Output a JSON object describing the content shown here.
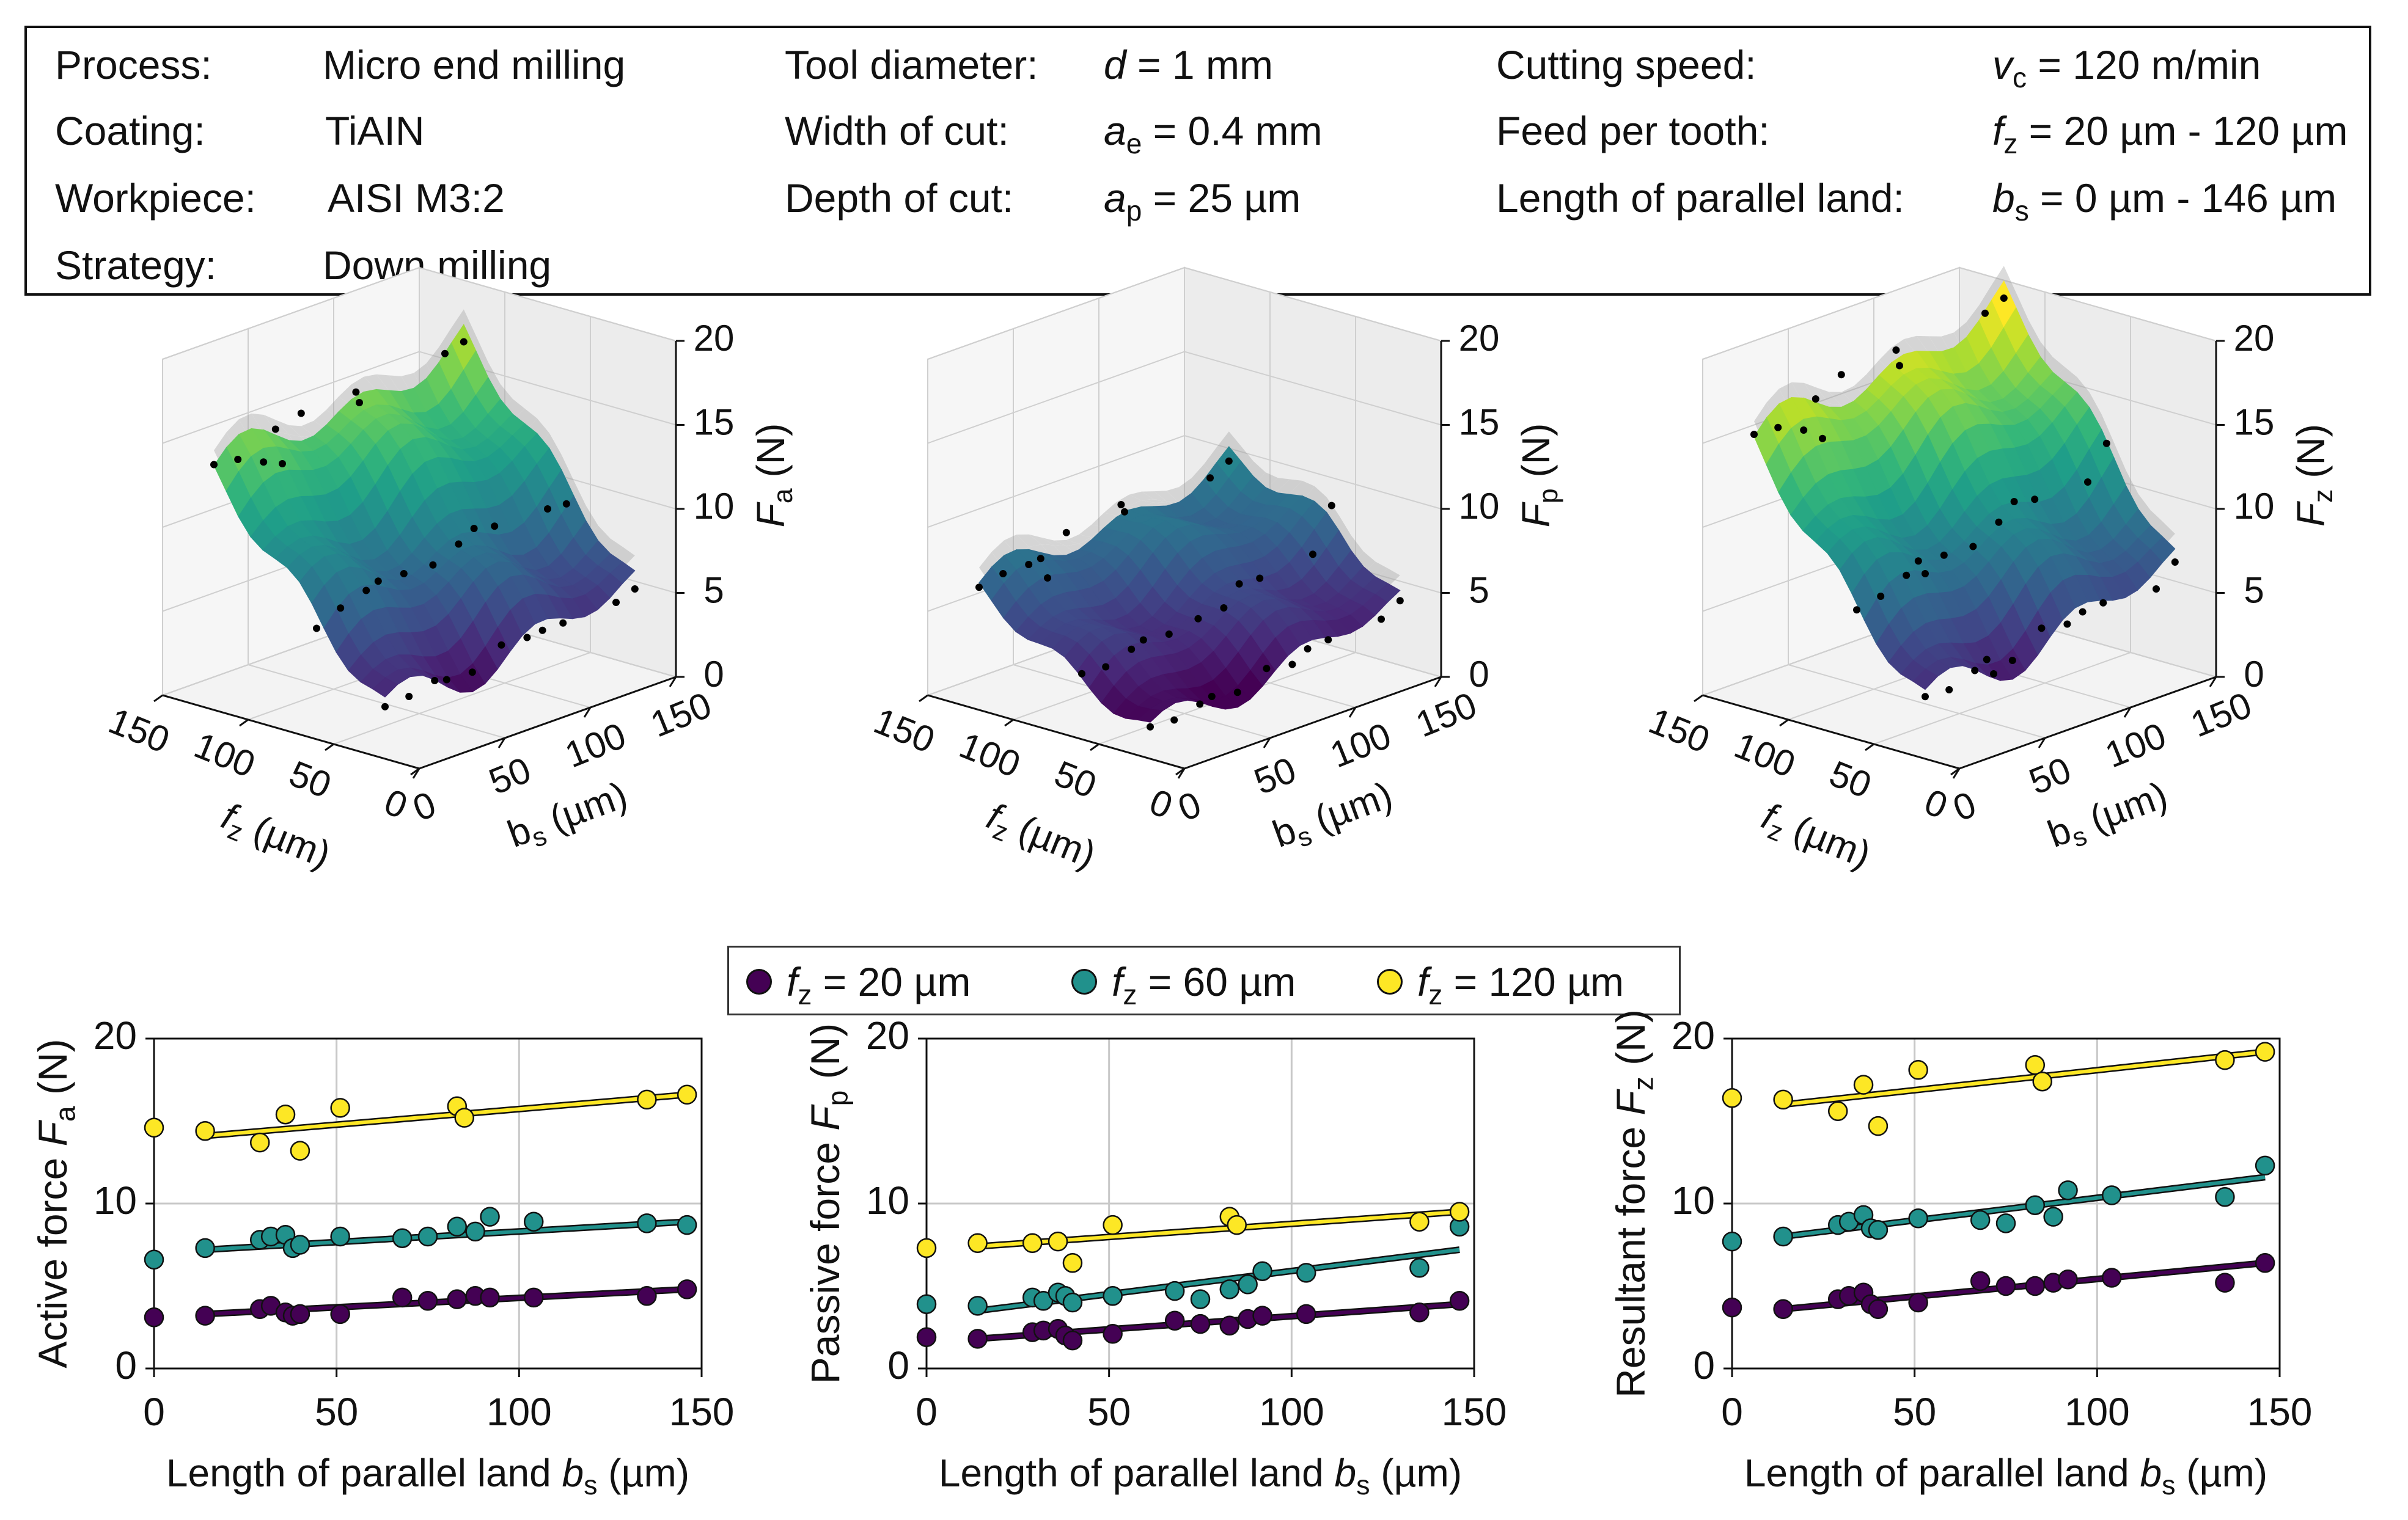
{
  "parameters": {
    "col1": [
      {
        "label": "Process:",
        "value": "Micro end milling"
      },
      {
        "label": "Coating:",
        "value": "TiAIN"
      },
      {
        "label": "Workpiece:",
        "value": "AISI M3:2"
      },
      {
        "label": "Strategy:",
        "value": "Down milling"
      }
    ],
    "col2": [
      {
        "label": "Tool diameter:",
        "sym": "d",
        "sub": "",
        "rest": " = 1 mm"
      },
      {
        "label": "Width of cut:",
        "sym": "a",
        "sub": "e",
        "rest": " = 0.4 mm"
      },
      {
        "label": "Depth of cut:",
        "sym": "a",
        "sub": "p",
        "rest": " = 25 µm"
      }
    ],
    "col3": [
      {
        "label": "Cutting speed:",
        "sym": "v",
        "sub": "c",
        "rest": " = 120 m/min"
      },
      {
        "label": "Feed per tooth:",
        "sym": "f",
        "sub": "z",
        "rest": " = 20 µm - 120 µm"
      },
      {
        "label": "Length of parallel land:",
        "sym": "b",
        "sub": "s",
        "rest": " = 0 µm - 146 µm"
      }
    ]
  },
  "legend": [
    {
      "sym": "f",
      "sub": "z",
      "text": " =   20 µm",
      "color": "#440154"
    },
    {
      "sym": "f",
      "sub": "z",
      "text": " =   60 µm",
      "color": "#21918c"
    },
    {
      "sym": "f",
      "sub": "z",
      "text": " = 120 µm",
      "color": "#fde725"
    }
  ],
  "chart_data": [
    {
      "type": "surface3d",
      "z_letter": "F",
      "z_sub": "a",
      "z_unit": " (N)",
      "z_ticks": [
        "0",
        "5",
        "10",
        "15",
        "20"
      ],
      "fz_label": "f",
      "fz_sub": "z",
      "fz_unit": " (µm)",
      "fz_ticks": [
        "0",
        "50",
        "100",
        "150"
      ],
      "bs_label": "b",
      "bs_sub": "s",
      "bs_unit": " (µm)",
      "bs_ticks": [
        "0",
        "50",
        "100",
        "150"
      ],
      "zlim": [
        0,
        20
      ],
      "fz_range": [
        20,
        120
      ],
      "bs_range": [
        0,
        146
      ],
      "amplitude": 1.0,
      "points": [
        [
          20,
          0,
          3.1
        ],
        [
          20,
          14,
          3.2
        ],
        [
          20,
          29,
          3.6
        ],
        [
          20,
          36,
          3.4
        ],
        [
          20,
          51,
          3.3
        ],
        [
          20,
          68,
          4.3
        ],
        [
          20,
          83,
          4.2
        ],
        [
          20,
          92,
          4.3
        ],
        [
          20,
          104,
          4.3
        ],
        [
          20,
          135,
          4.4
        ],
        [
          20,
          146,
          4.8
        ],
        [
          60,
          0,
          6.6
        ],
        [
          60,
          14,
          7.3
        ],
        [
          60,
          29,
          7.8
        ],
        [
          60,
          36,
          8.1
        ],
        [
          60,
          51,
          8.0
        ],
        [
          60,
          68,
          7.9
        ],
        [
          60,
          83,
          8.6
        ],
        [
          60,
          92,
          9.2
        ],
        [
          60,
          104,
          8.9
        ],
        [
          60,
          135,
          8.8
        ],
        [
          60,
          146,
          8.7
        ],
        [
          120,
          0,
          14.6
        ],
        [
          120,
          14,
          14.4
        ],
        [
          120,
          29,
          13.7
        ],
        [
          120,
          36,
          15.4
        ],
        [
          120,
          40,
          13.2
        ],
        [
          120,
          51,
          15.8
        ],
        [
          120,
          83,
          15.9
        ],
        [
          120,
          85,
          15.2
        ],
        [
          120,
          135,
          16.3
        ],
        [
          120,
          146,
          16.6
        ]
      ]
    },
    {
      "type": "surface3d",
      "z_letter": "F",
      "z_sub": "p",
      "z_unit": " (N)",
      "z_ticks": [
        "0",
        "5",
        "10",
        "15",
        "20"
      ],
      "fz_label": "f",
      "fz_sub": "z",
      "fz_unit": " (µm)",
      "fz_ticks": [
        "0",
        "50",
        "100",
        "150"
      ],
      "bs_label": "b",
      "bs_sub": "s",
      "bs_unit": " (µm)",
      "bs_ticks": [
        "0",
        "50",
        "100",
        "150"
      ],
      "zlim": [
        0,
        20
      ],
      "fz_range": [
        20,
        120
      ],
      "bs_range": [
        0,
        146
      ],
      "amplitude": 0.8,
      "points": [
        [
          20,
          0,
          1.9
        ],
        [
          20,
          14,
          1.8
        ],
        [
          20,
          29,
          2.2
        ],
        [
          20,
          36,
          2.4
        ],
        [
          20,
          51,
          2.1
        ],
        [
          20,
          68,
          2.9
        ],
        [
          20,
          83,
          2.6
        ],
        [
          20,
          92,
          3.2
        ],
        [
          20,
          104,
          3.3
        ],
        [
          20,
          135,
          3.4
        ],
        [
          20,
          146,
          4.1
        ],
        [
          60,
          0,
          3.9
        ],
        [
          60,
          14,
          3.8
        ],
        [
          60,
          29,
          4.3
        ],
        [
          60,
          36,
          4.6
        ],
        [
          60,
          51,
          4.4
        ],
        [
          60,
          68,
          4.7
        ],
        [
          60,
          83,
          4.8
        ],
        [
          60,
          92,
          5.9
        ],
        [
          60,
          104,
          5.8
        ],
        [
          60,
          135,
          6.1
        ],
        [
          60,
          146,
          8.6
        ],
        [
          120,
          0,
          7.3
        ],
        [
          120,
          14,
          7.6
        ],
        [
          120,
          29,
          7.6
        ],
        [
          120,
          36,
          7.7
        ],
        [
          120,
          40,
          6.4
        ],
        [
          120,
          51,
          8.7
        ],
        [
          120,
          83,
          9.2
        ],
        [
          120,
          85,
          8.7
        ],
        [
          120,
          135,
          8.9
        ],
        [
          120,
          146,
          9.5
        ]
      ]
    },
    {
      "type": "surface3d",
      "z_letter": "F",
      "z_sub": "z",
      "z_unit": " (N)",
      "z_ticks": [
        "0",
        "5",
        "10",
        "15",
        "20"
      ],
      "fz_label": "f",
      "fz_sub": "z",
      "fz_unit": " (µm)",
      "fz_ticks": [
        "0",
        "50",
        "100",
        "150"
      ],
      "bs_label": "b",
      "bs_sub": "s",
      "bs_unit": " (µm)",
      "bs_ticks": [
        "0",
        "50",
        "100",
        "150"
      ],
      "zlim": [
        0,
        20
      ],
      "fz_range": [
        20,
        120
      ],
      "bs_range": [
        0,
        146
      ],
      "amplitude": 1.0,
      "points": [
        [
          20,
          0,
          3.7
        ],
        [
          20,
          14,
          3.6
        ],
        [
          20,
          29,
          4.2
        ],
        [
          20,
          36,
          4.6
        ],
        [
          20,
          40,
          3.6
        ],
        [
          20,
          51,
          4.0
        ],
        [
          20,
          68,
          5.3
        ],
        [
          20,
          83,
          5.0
        ],
        [
          20,
          92,
          5.4
        ],
        [
          20,
          104,
          5.5
        ],
        [
          20,
          135,
          5.2
        ],
        [
          20,
          146,
          6.4
        ],
        [
          60,
          0,
          7.7
        ],
        [
          60,
          14,
          8.0
        ],
        [
          60,
          29,
          8.7
        ],
        [
          60,
          36,
          9.3
        ],
        [
          60,
          40,
          8.4
        ],
        [
          60,
          51,
          9.1
        ],
        [
          60,
          68,
          9.0
        ],
        [
          60,
          83,
          9.9
        ],
        [
          60,
          92,
          10.8
        ],
        [
          60,
          104,
          10.5
        ],
        [
          60,
          135,
          10.4
        ],
        [
          60,
          146,
          12.3
        ],
        [
          120,
          0,
          16.4
        ],
        [
          120,
          14,
          16.3
        ],
        [
          120,
          29,
          15.6
        ],
        [
          120,
          36,
          17.2
        ],
        [
          120,
          40,
          14.7
        ],
        [
          120,
          51,
          18.1
        ],
        [
          120,
          83,
          18.4
        ],
        [
          120,
          85,
          17.4
        ],
        [
          120,
          135,
          18.7
        ],
        [
          120,
          146,
          19.2
        ]
      ]
    },
    {
      "type": "scatter",
      "ylabel": "Active force ",
      "ylabel_sym": "F",
      "ylabel_sub": "a",
      "ylabel_unit": " (N)",
      "xlabel": "Length of parallel land ",
      "xlabel_sym": "b",
      "xlabel_sub": "s",
      "xlabel_unit": " (µm)",
      "xlim": [
        0,
        150
      ],
      "ylim": [
        0,
        20
      ],
      "x_ticks": [
        "0",
        "50",
        "100",
        "150"
      ],
      "y_ticks": [
        "0",
        "10",
        "20"
      ],
      "series": [
        {
          "name": "fz = 20 µm",
          "color": "#440154",
          "x": [
            0,
            14,
            29,
            32,
            36,
            38,
            40,
            51,
            68,
            75,
            83,
            88,
            92,
            104,
            135,
            146
          ],
          "y": [
            3.1,
            3.2,
            3.6,
            3.8,
            3.4,
            3.2,
            3.3,
            3.3,
            4.3,
            4.1,
            4.2,
            4.4,
            4.3,
            4.3,
            4.4,
            4.8
          ],
          "fit": [
            [
              14,
              3.3
            ],
            [
              146,
              4.8
            ]
          ]
        },
        {
          "name": "fz = 60 µm",
          "color": "#21918c",
          "x": [
            0,
            14,
            29,
            32,
            36,
            38,
            40,
            51,
            68,
            75,
            83,
            88,
            92,
            104,
            135,
            146
          ],
          "y": [
            6.6,
            7.3,
            7.8,
            8.0,
            8.1,
            7.3,
            7.5,
            8.0,
            7.9,
            8.0,
            8.6,
            8.3,
            9.2,
            8.9,
            8.8,
            8.7
          ],
          "fit": [
            [
              14,
              7.2
            ],
            [
              146,
              8.9
            ]
          ]
        },
        {
          "name": "fz = 120 µm",
          "color": "#fde725",
          "x": [
            0,
            14,
            29,
            36,
            40,
            51,
            83,
            85,
            135,
            146
          ],
          "y": [
            14.6,
            14.4,
            13.7,
            15.4,
            13.2,
            15.8,
            15.9,
            15.2,
            16.3,
            16.6
          ],
          "fit": [
            [
              14,
              14.1
            ],
            [
              146,
              16.6
            ]
          ]
        }
      ]
    },
    {
      "type": "scatter",
      "ylabel": "Passive force ",
      "ylabel_sym": "F",
      "ylabel_sub": "p",
      "ylabel_unit": " (N)",
      "xlabel": "Length of parallel land ",
      "xlabel_sym": "b",
      "xlabel_sub": "s",
      "xlabel_unit": " (µm)",
      "xlim": [
        0,
        150
      ],
      "ylim": [
        0,
        20
      ],
      "x_ticks": [
        "0",
        "50",
        "100",
        "150"
      ],
      "y_ticks": [
        "0",
        "10",
        "20"
      ],
      "series": [
        {
          "name": "fz = 20 µm",
          "color": "#440154",
          "x": [
            0,
            14,
            29,
            32,
            36,
            38,
            40,
            51,
            68,
            75,
            83,
            88,
            92,
            104,
            135,
            146
          ],
          "y": [
            1.9,
            1.8,
            2.2,
            2.3,
            2.4,
            2.0,
            1.7,
            2.1,
            2.9,
            2.7,
            2.6,
            3.0,
            3.2,
            3.3,
            3.4,
            4.1
          ],
          "fit": [
            [
              14,
              1.8
            ],
            [
              146,
              3.9
            ]
          ]
        },
        {
          "name": "fz = 60 µm",
          "color": "#21918c",
          "x": [
            0,
            14,
            29,
            32,
            36,
            38,
            40,
            51,
            68,
            75,
            83,
            88,
            92,
            104,
            135,
            146
          ],
          "y": [
            3.9,
            3.8,
            4.3,
            4.1,
            4.6,
            4.4,
            4.0,
            4.4,
            4.7,
            4.2,
            4.8,
            5.1,
            5.9,
            5.8,
            6.1,
            8.6
          ],
          "fit": [
            [
              14,
              3.5
            ],
            [
              146,
              7.2
            ]
          ]
        },
        {
          "name": "fz = 120 µm",
          "color": "#fde725",
          "x": [
            0,
            14,
            29,
            36,
            40,
            51,
            83,
            85,
            135,
            146
          ],
          "y": [
            7.3,
            7.6,
            7.6,
            7.7,
            6.4,
            8.7,
            9.2,
            8.7,
            8.9,
            9.5
          ],
          "fit": [
            [
              14,
              7.4
            ],
            [
              146,
              9.5
            ]
          ]
        }
      ]
    },
    {
      "type": "scatter",
      "ylabel": "Resultant force ",
      "ylabel_sym": "F",
      "ylabel_sub": "z",
      "ylabel_unit": " (N)",
      "xlabel": "Length of parallel land ",
      "xlabel_sym": "b",
      "xlabel_sub": "s",
      "xlabel_unit": " (µm)",
      "xlim": [
        0,
        150
      ],
      "ylim": [
        0,
        20
      ],
      "x_ticks": [
        "0",
        "50",
        "100",
        "150"
      ],
      "y_ticks": [
        "0",
        "10",
        "20"
      ],
      "series": [
        {
          "name": "fz = 20 µm",
          "color": "#440154",
          "x": [
            0,
            14,
            29,
            32,
            36,
            38,
            40,
            51,
            68,
            75,
            83,
            88,
            92,
            104,
            135,
            146
          ],
          "y": [
            3.7,
            3.6,
            4.2,
            4.4,
            4.6,
            3.9,
            3.6,
            4.0,
            5.3,
            5.0,
            5.0,
            5.2,
            5.4,
            5.5,
            5.2,
            6.4
          ],
          "fit": [
            [
              14,
              3.6
            ],
            [
              146,
              6.4
            ]
          ]
        },
        {
          "name": "fz = 60 µm",
          "color": "#21918c",
          "x": [
            0,
            14,
            29,
            32,
            36,
            38,
            40,
            51,
            68,
            75,
            83,
            88,
            92,
            104,
            135,
            146
          ],
          "y": [
            7.7,
            8.0,
            8.7,
            8.9,
            9.3,
            8.5,
            8.4,
            9.1,
            9.0,
            8.8,
            9.9,
            9.2,
            10.8,
            10.5,
            10.4,
            12.3
          ],
          "fit": [
            [
              14,
              8.0
            ],
            [
              146,
              11.6
            ]
          ]
        },
        {
          "name": "fz = 120 µm",
          "color": "#fde725",
          "x": [
            0,
            14,
            29,
            36,
            40,
            51,
            83,
            85,
            135,
            146
          ],
          "y": [
            16.4,
            16.3,
            15.6,
            17.2,
            14.7,
            18.1,
            18.4,
            17.4,
            18.7,
            19.2
          ],
          "fit": [
            [
              14,
              16.0
            ],
            [
              146,
              19.2
            ]
          ]
        }
      ]
    }
  ]
}
